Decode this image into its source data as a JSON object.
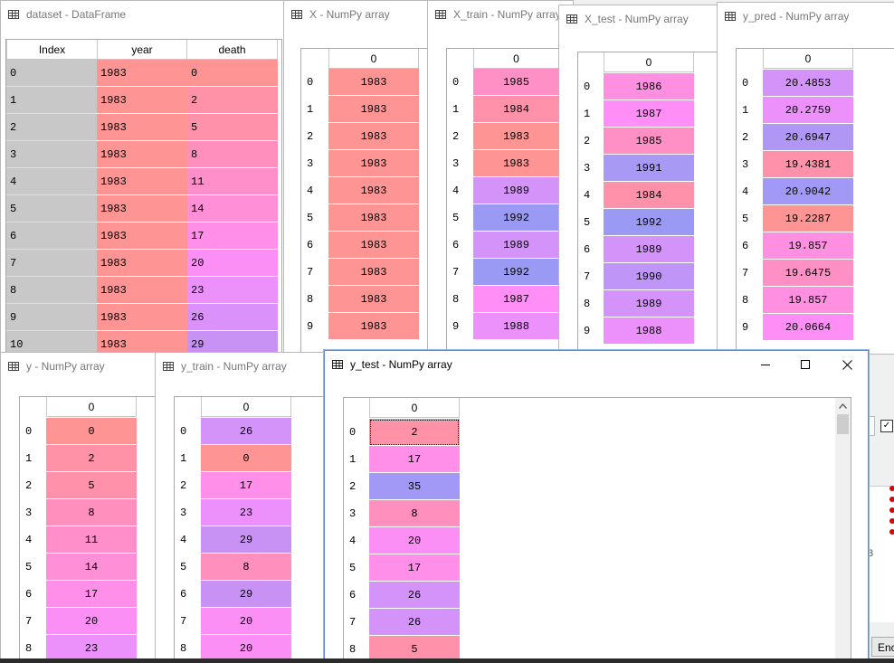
{
  "windows": {
    "dataset": {
      "title": "dataset - DataFrame",
      "headers": {
        "index": "Index",
        "year": "year",
        "death": "death"
      },
      "rows": [
        {
          "idx": "0",
          "year": "1983",
          "death": "0",
          "c1": "#ff9494",
          "c2": "#ff9494"
        },
        {
          "idx": "1",
          "year": "1983",
          "death": "2",
          "c1": "#ff9494",
          "c2": "#ff92a6"
        },
        {
          "idx": "2",
          "year": "1983",
          "death": "5",
          "c1": "#ff9494",
          "c2": "#ff92aa"
        },
        {
          "idx": "3",
          "year": "1983",
          "death": "8",
          "c1": "#ff9494",
          "c2": "#ff8fbd"
        },
        {
          "idx": "4",
          "year": "1983",
          "death": "11",
          "c1": "#ff9494",
          "c2": "#ff8fca"
        },
        {
          "idx": "5",
          "year": "1983",
          "death": "14",
          "c1": "#ff9494",
          "c2": "#ff8fd6"
        },
        {
          "idx": "6",
          "year": "1983",
          "death": "17",
          "c1": "#ff9494",
          "c2": "#ff8fe8"
        },
        {
          "idx": "7",
          "year": "1983",
          "death": "20",
          "c1": "#ff9494",
          "c2": "#fc8ff5"
        },
        {
          "idx": "8",
          "year": "1983",
          "death": "23",
          "c1": "#ff9494",
          "c2": "#ec90fc"
        },
        {
          "idx": "9",
          "year": "1983",
          "death": "26",
          "c1": "#ff9494",
          "c2": "#da91f9"
        },
        {
          "idx": "10",
          "year": "1983",
          "death": "29",
          "c1": "#ff9494",
          "c2": "#c892f5"
        }
      ]
    },
    "X": {
      "title": "X - NumPy array",
      "col": "0",
      "rows": [
        {
          "i": "0",
          "v": "1983",
          "c": "#ff9494"
        },
        {
          "i": "1",
          "v": "1983",
          "c": "#ff9494"
        },
        {
          "i": "2",
          "v": "1983",
          "c": "#ff9494"
        },
        {
          "i": "3",
          "v": "1983",
          "c": "#ff9494"
        },
        {
          "i": "4",
          "v": "1983",
          "c": "#ff9494"
        },
        {
          "i": "5",
          "v": "1983",
          "c": "#ff9494"
        },
        {
          "i": "6",
          "v": "1983",
          "c": "#ff9494"
        },
        {
          "i": "7",
          "v": "1983",
          "c": "#ff9494"
        },
        {
          "i": "8",
          "v": "1983",
          "c": "#ff9494"
        },
        {
          "i": "9",
          "v": "1983",
          "c": "#ff9494"
        }
      ]
    },
    "X_train": {
      "title": "X_train - NumPy array",
      "col": "0",
      "rows": [
        {
          "i": "0",
          "v": "1985",
          "c": "#ff90c6"
        },
        {
          "i": "1",
          "v": "1984",
          "c": "#ff92aa"
        },
        {
          "i": "2",
          "v": "1983",
          "c": "#ff9494"
        },
        {
          "i": "3",
          "v": "1983",
          "c": "#ff9494"
        },
        {
          "i": "4",
          "v": "1989",
          "c": "#d493f9"
        },
        {
          "i": "5",
          "v": "1992",
          "c": "#9a9af5"
        },
        {
          "i": "6",
          "v": "1989",
          "c": "#d493f9"
        },
        {
          "i": "7",
          "v": "1992",
          "c": "#9a9af5"
        },
        {
          "i": "8",
          "v": "1987",
          "c": "#ff8ff7"
        },
        {
          "i": "9",
          "v": "1988",
          "c": "#ec90fc"
        }
      ]
    },
    "X_test": {
      "title": "X_test - NumPy array",
      "col": "0",
      "rows": [
        {
          "i": "0",
          "v": "1986",
          "c": "#ff8fe0"
        },
        {
          "i": "1",
          "v": "1987",
          "c": "#ff8ff7"
        },
        {
          "i": "2",
          "v": "1985",
          "c": "#ff90c6"
        },
        {
          "i": "3",
          "v": "1991",
          "c": "#a899f5"
        },
        {
          "i": "4",
          "v": "1984",
          "c": "#ff92aa"
        },
        {
          "i": "5",
          "v": "1992",
          "c": "#9a9af5"
        },
        {
          "i": "6",
          "v": "1989",
          "c": "#d493f9"
        },
        {
          "i": "7",
          "v": "1990",
          "c": "#bf95f7"
        },
        {
          "i": "8",
          "v": "1989",
          "c": "#d493f9"
        },
        {
          "i": "9",
          "v": "1988",
          "c": "#ec90fc"
        }
      ]
    },
    "y_pred": {
      "title": "y_pred - NumPy array",
      "col": "0",
      "rows": [
        {
          "i": "0",
          "v": "20.4853",
          "c": "#d493f9"
        },
        {
          "i": "1",
          "v": "20.2759",
          "c": "#ec90fc"
        },
        {
          "i": "2",
          "v": "20.6947",
          "c": "#b096f5"
        },
        {
          "i": "3",
          "v": "19.4381",
          "c": "#ff92aa"
        },
        {
          "i": "4",
          "v": "20.9042",
          "c": "#a199f5"
        },
        {
          "i": "5",
          "v": "19.2287",
          "c": "#ff9494"
        },
        {
          "i": "6",
          "v": "19.857",
          "c": "#ff8fe0"
        },
        {
          "i": "7",
          "v": "19.6475",
          "c": "#ff90c6"
        },
        {
          "i": "8",
          "v": "19.857",
          "c": "#ff8fe0"
        },
        {
          "i": "9",
          "v": "20.0664",
          "c": "#ff8ff7"
        }
      ]
    },
    "y": {
      "title": "y - NumPy array",
      "col": "0",
      "rows": [
        {
          "i": "0",
          "v": "0",
          "c": "#ff9494"
        },
        {
          "i": "1",
          "v": "2",
          "c": "#ff92a6"
        },
        {
          "i": "2",
          "v": "5",
          "c": "#ff92aa"
        },
        {
          "i": "3",
          "v": "8",
          "c": "#ff8fbd"
        },
        {
          "i": "4",
          "v": "11",
          "c": "#ff8fca"
        },
        {
          "i": "5",
          "v": "14",
          "c": "#ff8fd6"
        },
        {
          "i": "6",
          "v": "17",
          "c": "#ff8fe8"
        },
        {
          "i": "7",
          "v": "20",
          "c": "#fc8ff5"
        },
        {
          "i": "8",
          "v": "23",
          "c": "#ec90fc"
        }
      ]
    },
    "y_train": {
      "title": "y_train - NumPy array",
      "col": "0",
      "rows": [
        {
          "i": "0",
          "v": "26",
          "c": "#d493f9"
        },
        {
          "i": "1",
          "v": "0",
          "c": "#ff9494"
        },
        {
          "i": "2",
          "v": "17",
          "c": "#ff8fe8"
        },
        {
          "i": "3",
          "v": "23",
          "c": "#ec90fc"
        },
        {
          "i": "4",
          "v": "29",
          "c": "#c892f5"
        },
        {
          "i": "5",
          "v": "8",
          "c": "#ff8fbd"
        },
        {
          "i": "6",
          "v": "29",
          "c": "#c892f5"
        },
        {
          "i": "7",
          "v": "20",
          "c": "#fc8ff5"
        },
        {
          "i": "8",
          "v": "20",
          "c": "#fc8ff5"
        }
      ]
    },
    "y_test": {
      "title": "y_test - NumPy array",
      "col": "0",
      "rows": [
        {
          "i": "0",
          "v": "2",
          "c": "#ff92a6"
        },
        {
          "i": "1",
          "v": "17",
          "c": "#ff8fe8"
        },
        {
          "i": "2",
          "v": "35",
          "c": "#a199f5"
        },
        {
          "i": "3",
          "v": "8",
          "c": "#ff8fbd"
        },
        {
          "i": "4",
          "v": "20",
          "c": "#fc8ff5"
        },
        {
          "i": "5",
          "v": "17",
          "c": "#ff8fe8"
        },
        {
          "i": "6",
          "v": "26",
          "c": "#d493f9"
        },
        {
          "i": "7",
          "v": "26",
          "c": "#d493f9"
        },
        {
          "i": "8",
          "v": "5",
          "c": "#ff92aa"
        }
      ],
      "controls": {
        "minimize": "minimize-icon",
        "maximize": "maximize-icon",
        "close": "close-icon"
      }
    }
  },
  "background_fragments": {
    "checkbox_icon": "checkbox-icon",
    "partial_text": "3",
    "button_partial": "Enc",
    "dots_color": "#e00000"
  }
}
